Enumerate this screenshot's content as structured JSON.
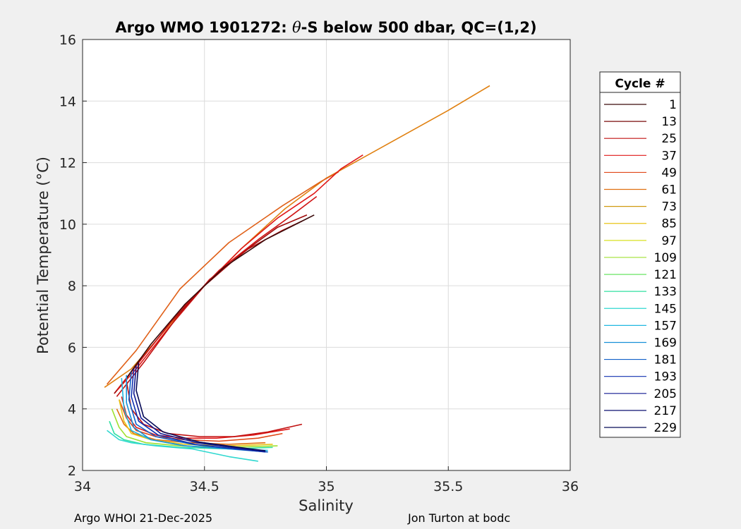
{
  "chart_data": {
    "type": "line",
    "title": "Argo WMO 1901272: θ-S below 500 dbar,  QC=(1,2)",
    "title_parts": {
      "prefix": "Argo WMO 1901272: ",
      "theta": "θ",
      "suffix": "-S below 500 dbar,  QC=(1,2)"
    },
    "xlabel": "Salinity",
    "ylabel": "Potential Temperature (°C)",
    "xlim": [
      34,
      36
    ],
    "ylim": [
      2,
      16
    ],
    "xticks": [
      "34",
      "34.5",
      "35",
      "35.5",
      "36"
    ],
    "yticks": [
      "2",
      "4",
      "6",
      "8",
      "10",
      "12",
      "14",
      "16"
    ],
    "grid": true,
    "legend": {
      "title": "Cycle #",
      "placement": "outside-right",
      "entries": [
        {
          "label": "1",
          "color": "#3a0a0a"
        },
        {
          "label": "13",
          "color": "#7a0c0c"
        },
        {
          "label": "25",
          "color": "#c01010"
        },
        {
          "label": "37",
          "color": "#e01818"
        },
        {
          "label": "49",
          "color": "#e04818"
        },
        {
          "label": "61",
          "color": "#e07010"
        },
        {
          "label": "73",
          "color": "#d09a10"
        },
        {
          "label": "85",
          "color": "#e8c418"
        },
        {
          "label": "97",
          "color": "#d8e020"
        },
        {
          "label": "109",
          "color": "#a0e030"
        },
        {
          "label": "121",
          "color": "#58e050"
        },
        {
          "label": "133",
          "color": "#30e0a0"
        },
        {
          "label": "145",
          "color": "#30d8d0"
        },
        {
          "label": "157",
          "color": "#20b8e0"
        },
        {
          "label": "169",
          "color": "#1890d8"
        },
        {
          "label": "181",
          "color": "#1060c8"
        },
        {
          "label": "193",
          "color": "#1030b0"
        },
        {
          "label": "205",
          "color": "#101890"
        },
        {
          "label": "217",
          "color": "#0c1070"
        },
        {
          "label": "229",
          "color": "#080c58"
        }
      ]
    },
    "series": [
      {
        "color": "#e08010",
        "x": [
          34.09,
          34.2,
          34.3,
          34.45,
          34.65,
          34.83,
          35.0,
          35.25,
          35.5,
          35.67
        ],
        "y": [
          4.7,
          5.3,
          6.2,
          7.6,
          9.2,
          10.5,
          11.5,
          12.6,
          13.7,
          14.5
        ]
      },
      {
        "color": "#e06018",
        "x": [
          34.1,
          34.22,
          34.4,
          34.6,
          34.82,
          34.98,
          35.05
        ],
        "y": [
          4.8,
          5.9,
          7.9,
          9.4,
          10.6,
          11.4,
          11.7
        ]
      },
      {
        "color": "#e01818",
        "x": [
          34.13,
          34.22,
          34.35,
          34.5,
          34.65,
          34.8,
          34.95,
          35.06,
          35.15
        ],
        "y": [
          4.5,
          5.3,
          6.6,
          8.0,
          9.2,
          10.2,
          11.0,
          11.8,
          12.25
        ]
      },
      {
        "color": "#c01010",
        "x": [
          34.14,
          34.25,
          34.38,
          34.52,
          34.68,
          34.82,
          34.9
        ],
        "y": [
          4.4,
          5.5,
          6.9,
          8.2,
          9.2,
          9.8,
          10.1
        ]
      },
      {
        "color": "#a00c0c",
        "x": [
          34.13,
          34.24,
          34.36,
          34.5,
          34.66,
          34.8,
          34.92
        ],
        "y": [
          4.5,
          5.6,
          6.8,
          8.0,
          9.1,
          9.9,
          10.3
        ]
      },
      {
        "color": "#d01414",
        "x": [
          34.14,
          34.26,
          34.4,
          34.56,
          34.72,
          34.86,
          34.96
        ],
        "y": [
          4.6,
          5.8,
          7.2,
          8.5,
          9.5,
          10.3,
          10.9
        ]
      },
      {
        "color": "#3a0a0a",
        "x": [
          34.18,
          34.28,
          34.42,
          34.58,
          34.75,
          34.9,
          34.95
        ],
        "y": [
          5.0,
          6.1,
          7.4,
          8.6,
          9.5,
          10.1,
          10.3
        ]
      },
      {
        "color": "#e01818",
        "x": [
          34.16,
          34.18,
          34.22,
          34.3,
          34.42,
          34.55,
          34.7,
          34.85
        ],
        "y": [
          4.4,
          3.8,
          3.4,
          3.15,
          3.05,
          3.05,
          3.15,
          3.35
        ]
      },
      {
        "color": "#c01010",
        "x": [
          34.18,
          34.2,
          34.25,
          34.35,
          34.48,
          34.62,
          34.76,
          34.9
        ],
        "y": [
          4.9,
          4.0,
          3.5,
          3.2,
          3.1,
          3.1,
          3.25,
          3.5
        ]
      },
      {
        "color": "#e04818",
        "x": [
          34.15,
          34.18,
          34.22,
          34.3,
          34.42,
          34.56,
          34.72,
          34.82
        ],
        "y": [
          4.3,
          3.7,
          3.3,
          3.1,
          3.0,
          2.95,
          3.05,
          3.2
        ]
      },
      {
        "color": "#e07010",
        "x": [
          34.14,
          34.17,
          34.21,
          34.3,
          34.44,
          34.6,
          34.75
        ],
        "y": [
          4.0,
          3.5,
          3.2,
          3.0,
          2.9,
          2.85,
          2.9
        ]
      },
      {
        "color": "#e8c418",
        "x": [
          34.15,
          34.17,
          34.2,
          34.28,
          34.42,
          34.6,
          34.78
        ],
        "y": [
          4.3,
          3.6,
          3.2,
          3.0,
          2.85,
          2.8,
          2.85
        ]
      },
      {
        "color": "#a0e030",
        "x": [
          34.12,
          34.15,
          34.18,
          34.26,
          34.4,
          34.58,
          34.8
        ],
        "y": [
          4.0,
          3.4,
          3.1,
          2.9,
          2.8,
          2.75,
          2.8
        ]
      },
      {
        "color": "#30e0a0",
        "x": [
          34.11,
          34.13,
          34.17,
          34.25,
          34.4,
          34.6,
          34.78
        ],
        "y": [
          3.6,
          3.2,
          3.0,
          2.85,
          2.75,
          2.7,
          2.75
        ]
      },
      {
        "color": "#30d8d0",
        "x": [
          34.1,
          34.15,
          34.2,
          34.3,
          34.45,
          34.6,
          34.72
        ],
        "y": [
          3.3,
          3.0,
          2.9,
          2.8,
          2.7,
          2.45,
          2.3
        ]
      },
      {
        "color": "#20b8e0",
        "x": [
          34.16,
          34.17,
          34.2,
          34.28,
          34.42,
          34.6,
          34.76
        ],
        "y": [
          5.0,
          4.0,
          3.3,
          3.0,
          2.8,
          2.7,
          2.65
        ]
      },
      {
        "color": "#1890d8",
        "x": [
          34.18,
          34.18,
          34.21,
          34.28,
          34.42,
          34.6,
          34.76
        ],
        "y": [
          5.1,
          4.2,
          3.4,
          3.0,
          2.8,
          2.7,
          2.6
        ]
      },
      {
        "color": "#1060c8",
        "x": [
          34.2,
          34.19,
          34.22,
          34.3,
          34.45,
          34.62,
          34.76
        ],
        "y": [
          5.2,
          4.3,
          3.5,
          3.1,
          2.85,
          2.7,
          2.6
        ]
      },
      {
        "color": "#1030b0",
        "x": [
          34.21,
          34.2,
          34.23,
          34.31,
          34.46,
          34.63,
          34.75
        ],
        "y": [
          5.3,
          4.4,
          3.6,
          3.15,
          2.85,
          2.7,
          2.6
        ]
      },
      {
        "color": "#101890",
        "x": [
          34.22,
          34.21,
          34.24,
          34.32,
          34.47,
          34.64,
          34.75
        ],
        "y": [
          5.4,
          4.5,
          3.7,
          3.2,
          2.9,
          2.72,
          2.62
        ]
      },
      {
        "color": "#080c58",
        "x": [
          34.23,
          34.22,
          34.25,
          34.33,
          34.48,
          34.65,
          34.75
        ],
        "y": [
          5.5,
          4.6,
          3.75,
          3.25,
          2.92,
          2.74,
          2.64
        ]
      }
    ]
  },
  "footer": {
    "left": "Argo WHOI 21-Dec-2025",
    "right": "Jon Turton at bodc"
  }
}
